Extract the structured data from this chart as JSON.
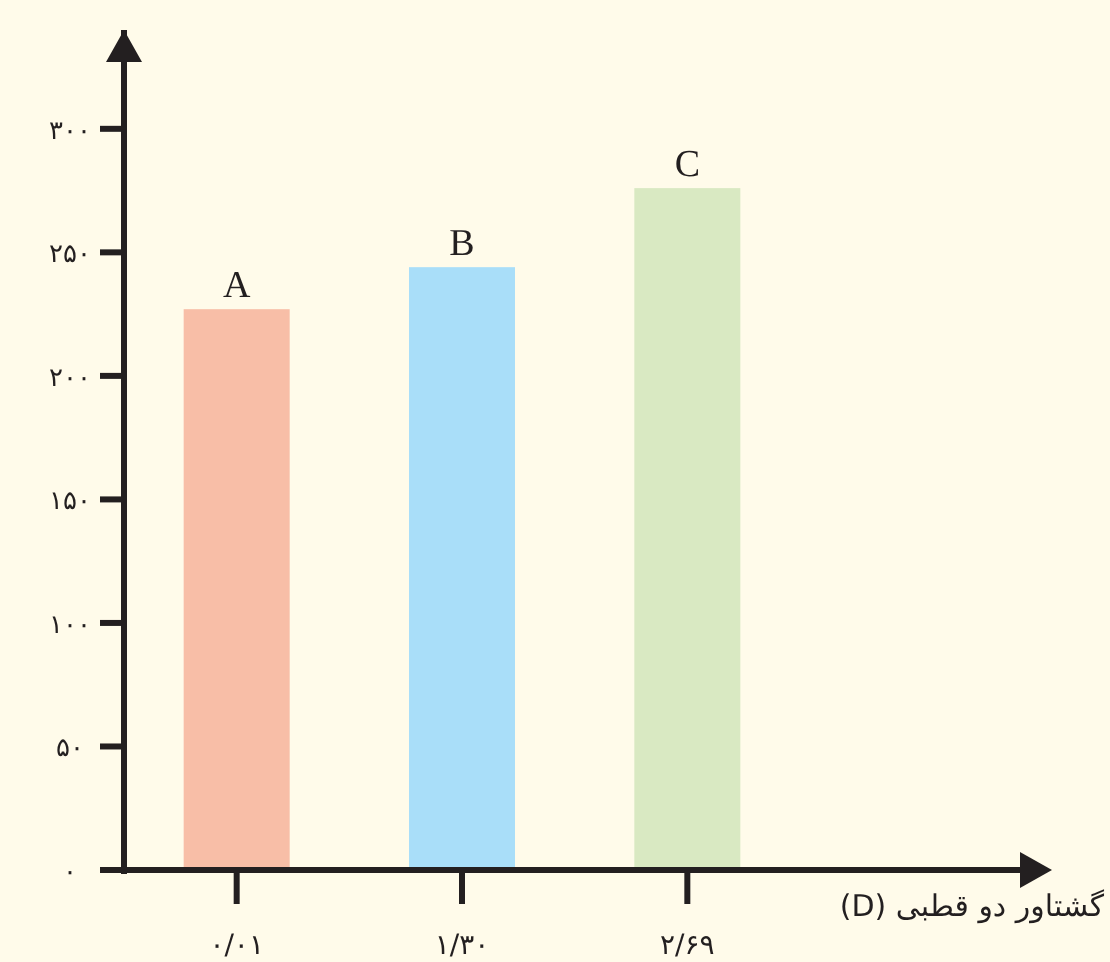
{
  "chart_data": {
    "type": "bar",
    "xlabel": "گشتاور دو قطبی (D)",
    "categories": [
      "۰/۰۱",
      "۱/۳۰",
      "۲/۶۹"
    ],
    "values": [
      227,
      244,
      276
    ],
    "colors": [
      "#f8bea7",
      "#a9def9",
      "#d9e9c2"
    ],
    "value_labels": [
      "A",
      "B",
      "C"
    ],
    "ylim": [
      0,
      340
    ],
    "yticks": [
      {
        "value": 0,
        "label": "۰"
      },
      {
        "value": 50,
        "label": "۵۰"
      },
      {
        "value": 100,
        "label": "۱۰۰"
      },
      {
        "value": 150,
        "label": "۱۵۰"
      },
      {
        "value": 200,
        "label": "۲۰۰"
      },
      {
        "value": 250,
        "label": "۲۵۰"
      },
      {
        "value": 300,
        "label": "۳۰۰"
      }
    ]
  }
}
